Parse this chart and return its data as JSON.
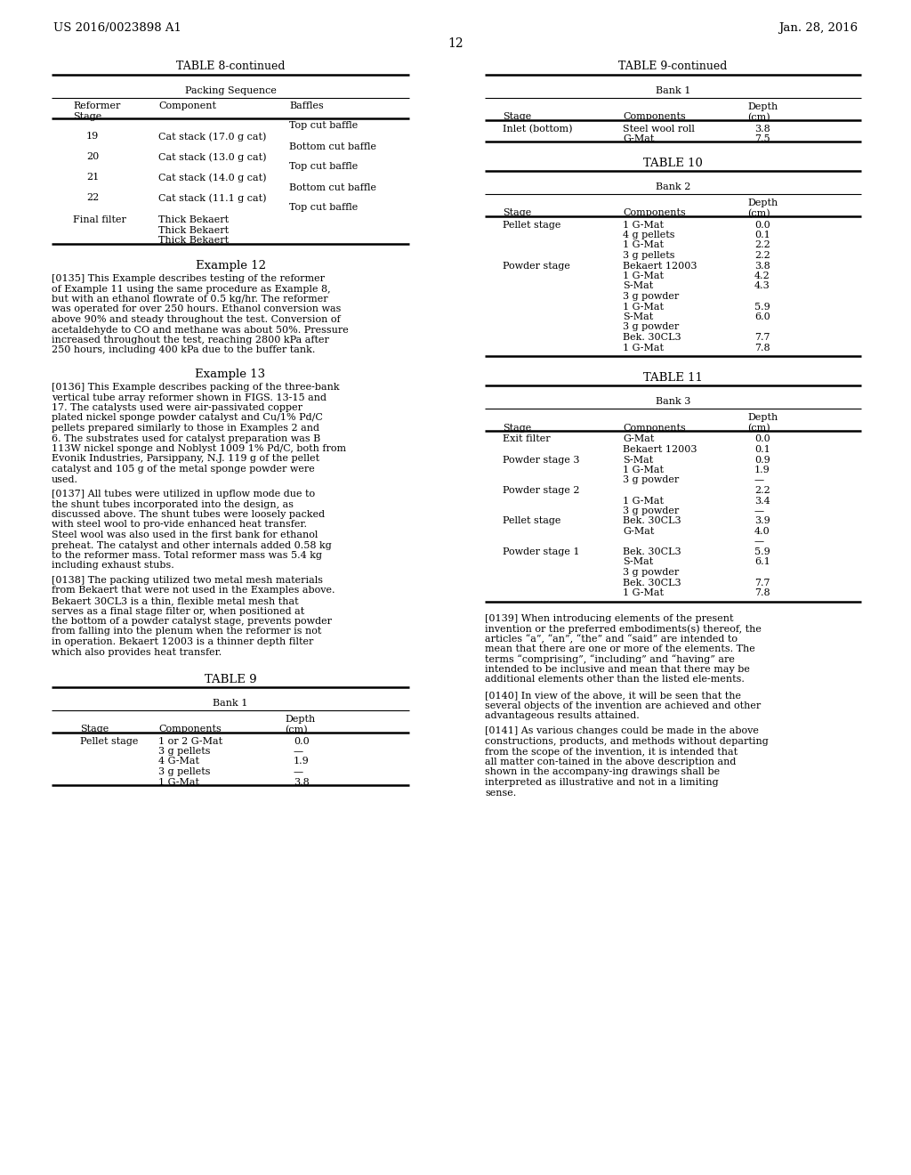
{
  "background_color": "#ffffff",
  "header_left": "US 2016/0023898 A1",
  "header_right": "Jan. 28, 2016",
  "page_number": "12"
}
